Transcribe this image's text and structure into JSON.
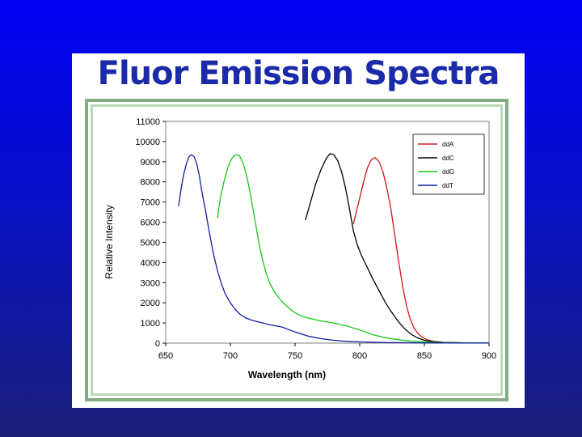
{
  "slide": {
    "title": "Fluor Emission Spectra"
  },
  "chart_data": {
    "type": "line",
    "title": "",
    "xlabel": "Wavelength (nm)",
    "ylabel": "Relative Intensity",
    "xlim": [
      650,
      900
    ],
    "ylim": [
      0,
      11000
    ],
    "xticks": [
      650,
      700,
      750,
      800,
      850,
      900
    ],
    "yticks": [
      0,
      1000,
      2000,
      3000,
      4000,
      5000,
      6000,
      7000,
      8000,
      9000,
      10000,
      11000
    ],
    "grid": false,
    "legend_position": "top-right",
    "series": [
      {
        "name": "ddA",
        "color": "#d01818",
        "points": [
          [
            795,
            5900
          ],
          [
            797,
            6400
          ],
          [
            800,
            7200
          ],
          [
            803,
            8000
          ],
          [
            806,
            8700
          ],
          [
            809,
            9100
          ],
          [
            812,
            9200
          ],
          [
            815,
            9000
          ],
          [
            818,
            8500
          ],
          [
            821,
            7700
          ],
          [
            824,
            6700
          ],
          [
            827,
            5400
          ],
          [
            830,
            4100
          ],
          [
            833,
            2900
          ],
          [
            836,
            1900
          ],
          [
            839,
            1200
          ],
          [
            842,
            750
          ],
          [
            845,
            480
          ],
          [
            848,
            300
          ],
          [
            852,
            170
          ],
          [
            857,
            90
          ],
          [
            865,
            40
          ],
          [
            875,
            20
          ],
          [
            890,
            8
          ],
          [
            900,
            5
          ]
        ]
      },
      {
        "name": "ddC",
        "color": "#000000",
        "points": [
          [
            758,
            6100
          ],
          [
            762,
            7000
          ],
          [
            766,
            7900
          ],
          [
            770,
            8600
          ],
          [
            774,
            9150
          ],
          [
            777,
            9400
          ],
          [
            780,
            9350
          ],
          [
            783,
            9050
          ],
          [
            786,
            8500
          ],
          [
            789,
            7700
          ],
          [
            792,
            6700
          ],
          [
            795,
            5600
          ],
          [
            798,
            4900
          ],
          [
            801,
            4400
          ],
          [
            804,
            4000
          ],
          [
            807,
            3600
          ],
          [
            810,
            3200
          ],
          [
            815,
            2600
          ],
          [
            820,
            2000
          ],
          [
            825,
            1500
          ],
          [
            830,
            1050
          ],
          [
            835,
            700
          ],
          [
            840,
            430
          ],
          [
            845,
            250
          ],
          [
            850,
            140
          ],
          [
            857,
            70
          ],
          [
            865,
            35
          ],
          [
            880,
            12
          ],
          [
            900,
            5
          ]
        ]
      },
      {
        "name": "ddG",
        "color": "#18c818",
        "points": [
          [
            690,
            6200
          ],
          [
            692,
            7100
          ],
          [
            695,
            8000
          ],
          [
            698,
            8700
          ],
          [
            701,
            9150
          ],
          [
            704,
            9350
          ],
          [
            707,
            9300
          ],
          [
            710,
            8900
          ],
          [
            713,
            8200
          ],
          [
            716,
            7200
          ],
          [
            719,
            6100
          ],
          [
            722,
            5000
          ],
          [
            725,
            4100
          ],
          [
            728,
            3400
          ],
          [
            731,
            2900
          ],
          [
            735,
            2450
          ],
          [
            740,
            2050
          ],
          [
            745,
            1750
          ],
          [
            750,
            1500
          ],
          [
            755,
            1350
          ],
          [
            760,
            1250
          ],
          [
            770,
            1100
          ],
          [
            780,
            1000
          ],
          [
            790,
            850
          ],
          [
            800,
            650
          ],
          [
            810,
            420
          ],
          [
            820,
            270
          ],
          [
            830,
            170
          ],
          [
            840,
            100
          ],
          [
            850,
            60
          ],
          [
            860,
            35
          ],
          [
            875,
            18
          ],
          [
            900,
            8
          ]
        ]
      },
      {
        "name": "ddT",
        "color": "#1020a0",
        "points": [
          [
            660,
            6800
          ],
          [
            662,
            7700
          ],
          [
            664,
            8400
          ],
          [
            666,
            8900
          ],
          [
            668,
            9250
          ],
          [
            670,
            9350
          ],
          [
            672,
            9250
          ],
          [
            674,
            8900
          ],
          [
            676,
            8300
          ],
          [
            678,
            7500
          ],
          [
            681,
            6500
          ],
          [
            684,
            5400
          ],
          [
            687,
            4400
          ],
          [
            690,
            3600
          ],
          [
            693,
            2950
          ],
          [
            696,
            2450
          ],
          [
            700,
            2000
          ],
          [
            704,
            1650
          ],
          [
            708,
            1400
          ],
          [
            712,
            1250
          ],
          [
            716,
            1150
          ],
          [
            720,
            1080
          ],
          [
            725,
            1000
          ],
          [
            730,
            920
          ],
          [
            740,
            800
          ],
          [
            750,
            550
          ],
          [
            760,
            350
          ],
          [
            770,
            220
          ],
          [
            780,
            140
          ],
          [
            790,
            90
          ],
          [
            800,
            60
          ],
          [
            820,
            30
          ],
          [
            850,
            12
          ],
          [
            900,
            5
          ]
        ]
      }
    ]
  }
}
